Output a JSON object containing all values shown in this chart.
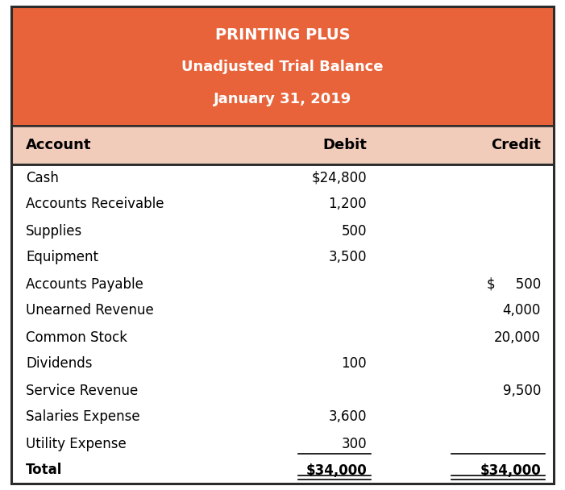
{
  "title_line1": "PRINTING PLUS",
  "title_line2": "Unadjusted Trial Balance",
  "title_line3": "January 31, 2019",
  "header_bg": "#E8633A",
  "header_text_color": "#FFFFFF",
  "col_header_bg": "#F2CCBB",
  "col_header_text_color": "#000000",
  "table_bg": "#FFFFFF",
  "border_color": "#2B2B2B",
  "accounts": [
    "Cash",
    "Accounts Receivable",
    "Supplies",
    "Equipment",
    "Accounts Payable",
    "Unearned Revenue",
    "Common Stock",
    "Dividends",
    "Service Revenue",
    "Salaries Expense",
    "Utility Expense",
    "Total"
  ],
  "debits": [
    "$24,800",
    "1,200",
    "500",
    "3,500",
    "",
    "",
    "",
    "100",
    "",
    "3,600",
    "300",
    "$34,000"
  ],
  "credits": [
    "",
    "",
    "",
    "",
    "$   500",
    "4,000",
    "20,000",
    "",
    "9,500",
    "",
    "",
    "$34,000"
  ],
  "col_headers": [
    "Account",
    "Debit",
    "Credit"
  ],
  "header_fontsize": 13,
  "title1_fontsize": 14,
  "col_header_fontsize": 13,
  "data_fontsize": 12,
  "total_fontsize": 12
}
